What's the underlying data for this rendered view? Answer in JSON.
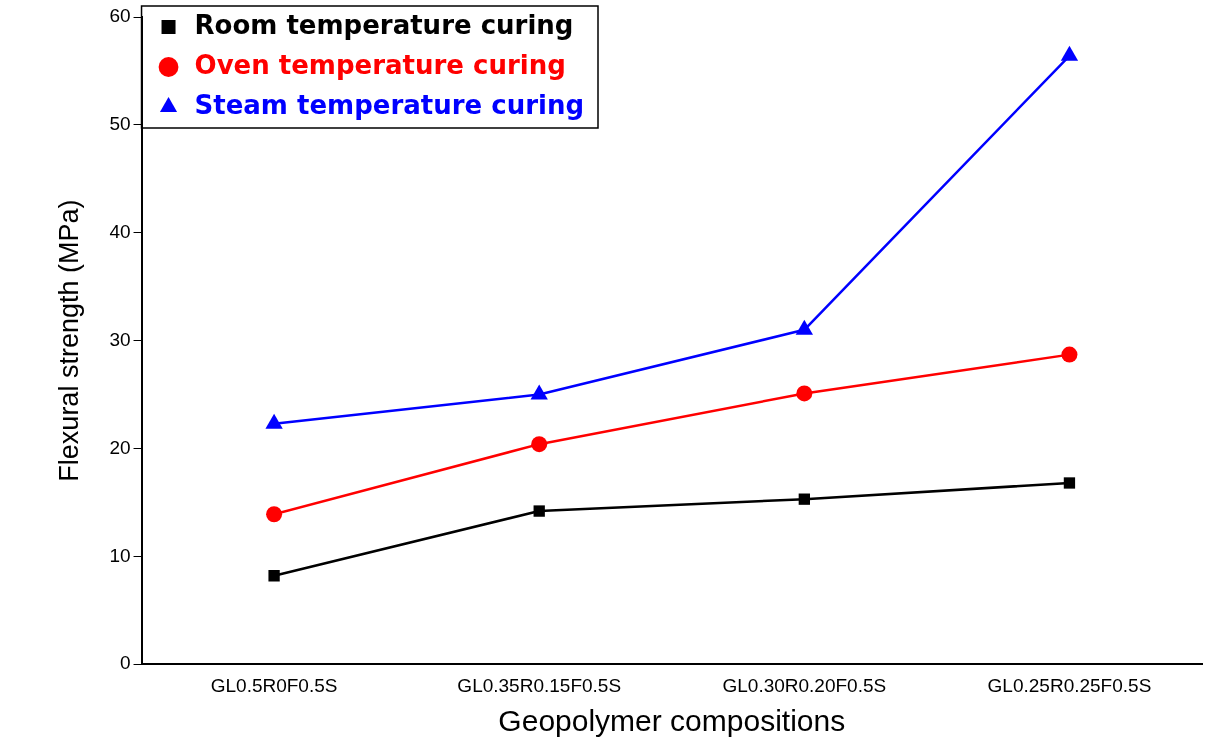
{
  "chart_data": {
    "type": "line",
    "xlabel": "Geopolymer compositions",
    "ylabel": "Flexural strength (MPa)",
    "categories": [
      "GL0.5R0F0.5S",
      "GL0.35R0.15F0.5S",
      "GL0.30R0.20F0.5S",
      "GL0.25R0.25F0.5S"
    ],
    "series": [
      {
        "name": "Room temperature curing",
        "color": "#000000",
        "marker": "square",
        "values": [
          8.2,
          14.2,
          15.3,
          16.8
        ]
      },
      {
        "name": "Oven temperature curing",
        "color": "#ff0000",
        "marker": "circle",
        "values": [
          13.9,
          20.4,
          25.1,
          28.7
        ]
      },
      {
        "name": "Steam temperature curing",
        "color": "#0000ff",
        "marker": "triangle",
        "values": [
          22.3,
          25.0,
          31.0,
          56.4
        ]
      }
    ],
    "ylim": [
      0,
      60
    ],
    "yticks": [
      0,
      10,
      20,
      30,
      40,
      50,
      60
    ],
    "grid": false,
    "legend": "top left",
    "line_style": "solid"
  }
}
